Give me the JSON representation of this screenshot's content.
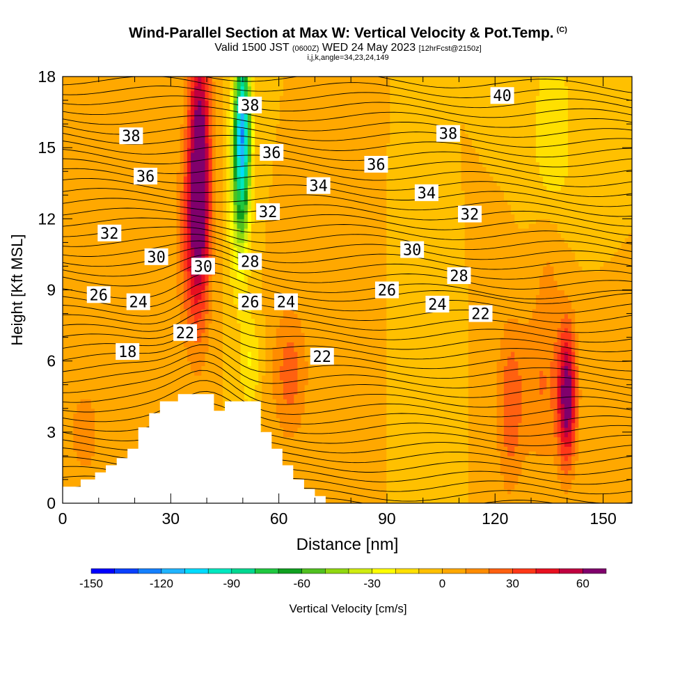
{
  "header": {
    "title": "Wind-Parallel Section at Max W: Vertical Velocity & Pot.Temp.",
    "copyright": "(C)",
    "valid_prefix": "Valid 1500 JST",
    "valid_utc": "(0600Z)",
    "valid_date": "WED 24 May 2023",
    "forecast_info": "[12hrFcst@2150z]",
    "indices": "i,j,k,angle=34,23,24,149"
  },
  "chart_data": {
    "type": "heatmap",
    "title": "Wind-Parallel Section at Max W: Vertical Velocity & Pot.Temp.",
    "xlabel": "Distance [nm]",
    "ylabel": "Height [Kft MSL]",
    "xlim": [
      0,
      158
    ],
    "ylim": [
      0,
      18
    ],
    "x_ticks": [
      0,
      30,
      60,
      90,
      120,
      150
    ],
    "y_ticks": [
      0,
      3,
      6,
      9,
      12,
      15,
      18
    ],
    "grid": false,
    "colorbar": {
      "label": "Vertical Velocity [cm/s]",
      "placement": "bottom",
      "ticks": [
        -150,
        -120,
        -90,
        -60,
        -30,
        0,
        30,
        60
      ],
      "levels": [
        -150,
        -140,
        -130,
        -120,
        -110,
        -100,
        -90,
        -80,
        -70,
        -60,
        -50,
        -40,
        -30,
        -20,
        -10,
        0,
        10,
        20,
        30,
        40,
        50,
        60,
        70
      ],
      "colors": [
        "#0000ff",
        "#0a40ff",
        "#1480ff",
        "#20b4ff",
        "#00dcff",
        "#00e8c0",
        "#00d890",
        "#20c840",
        "#10a020",
        "#50c020",
        "#90d810",
        "#d0ec10",
        "#ffff00",
        "#ffe000",
        "#ffc000",
        "#ffa800",
        "#ff8c00",
        "#ff6010",
        "#ff3818",
        "#e81020",
        "#c00040",
        "#80006c"
      ]
    },
    "terrain_kft": [
      [
        0,
        0.7
      ],
      [
        5,
        0.7
      ],
      [
        5,
        1.0
      ],
      [
        9,
        1.0
      ],
      [
        9,
        1.3
      ],
      [
        12,
        1.3
      ],
      [
        12,
        1.6
      ],
      [
        15,
        1.6
      ],
      [
        15,
        1.9
      ],
      [
        18,
        1.9
      ],
      [
        18,
        2.3
      ],
      [
        21,
        2.3
      ],
      [
        21,
        3.2
      ],
      [
        24,
        3.2
      ],
      [
        24,
        3.8
      ],
      [
        27,
        3.8
      ],
      [
        27,
        4.3
      ],
      [
        32,
        4.3
      ],
      [
        32,
        4.6
      ],
      [
        42,
        4.6
      ],
      [
        42,
        3.9
      ],
      [
        45,
        3.9
      ],
      [
        45,
        4.3
      ],
      [
        55,
        4.3
      ],
      [
        55,
        3.0
      ],
      [
        58,
        3.0
      ],
      [
        58,
        2.3
      ],
      [
        61,
        2.3
      ],
      [
        61,
        1.6
      ],
      [
        64,
        1.6
      ],
      [
        64,
        1.0
      ],
      [
        67,
        1.0
      ],
      [
        67,
        0.6
      ],
      [
        70,
        0.6
      ],
      [
        70,
        0.3
      ],
      [
        73,
        0.3
      ],
      [
        73,
        0
      ]
    ],
    "series": [
      {
        "name": "Vertical Velocity",
        "background_value": 0,
        "updraft_downdraft_cells": [
          {
            "x": 38,
            "y": 14.5,
            "sx": 2.2,
            "sy": 4.0,
            "value": 70
          },
          {
            "x": 36,
            "y": 11.0,
            "sx": 3.0,
            "sy": 3.0,
            "value": 30
          },
          {
            "x": 50,
            "y": 16.0,
            "sx": 1.5,
            "sy": 2.5,
            "value": -90
          },
          {
            "x": 49,
            "y": 13.5,
            "sx": 2.0,
            "sy": 3.0,
            "value": -45
          },
          {
            "x": 52,
            "y": 6.0,
            "sx": 2.0,
            "sy": 1.5,
            "value": -20
          },
          {
            "x": 140,
            "y": 4.5,
            "sx": 1.8,
            "sy": 2.0,
            "value": 65
          },
          {
            "x": 133,
            "y": 5.0,
            "sx": 5.0,
            "sy": 2.5,
            "value": 20
          },
          {
            "x": 124,
            "y": 4.0,
            "sx": 2.5,
            "sy": 2.5,
            "value": 25
          },
          {
            "x": 63,
            "y": 5.5,
            "sx": 3.5,
            "sy": 2.0,
            "value": 25
          },
          {
            "x": 6,
            "y": 3.0,
            "sx": 5.0,
            "sy": 2.5,
            "value": 12
          },
          {
            "x": 20,
            "y": 15.0,
            "sx": 4.0,
            "sy": 4.0,
            "value": 10
          },
          {
            "x": 135,
            "y": 10.5,
            "sx": 3.0,
            "sy": 2.0,
            "value": 12
          },
          {
            "x": 105,
            "y": 4.5,
            "sx": 2.0,
            "sy": 2.0,
            "value": -8
          },
          {
            "x": 136,
            "y": 15.5,
            "sx": 4.0,
            "sy": 3.0,
            "value": -20
          }
        ]
      },
      {
        "name": "Pot.Temp.",
        "contour_labels": [
          {
            "x": 18,
            "y": 6.4,
            "label": "18"
          },
          {
            "x": 34,
            "y": 7.2,
            "label": "22"
          },
          {
            "x": 72,
            "y": 6.2,
            "label": "22"
          },
          {
            "x": 116,
            "y": 8.0,
            "label": "22"
          },
          {
            "x": 21,
            "y": 8.5,
            "label": "24"
          },
          {
            "x": 62,
            "y": 8.5,
            "label": "24"
          },
          {
            "x": 104,
            "y": 8.4,
            "label": "24"
          },
          {
            "x": 10,
            "y": 8.8,
            "label": "26"
          },
          {
            "x": 52,
            "y": 8.5,
            "label": "26"
          },
          {
            "x": 90,
            "y": 9.0,
            "label": "26"
          },
          {
            "x": 52,
            "y": 10.2,
            "label": "28"
          },
          {
            "x": 110,
            "y": 9.6,
            "label": "28"
          },
          {
            "x": 26,
            "y": 10.4,
            "label": "30"
          },
          {
            "x": 39,
            "y": 10.0,
            "label": "30"
          },
          {
            "x": 97,
            "y": 10.7,
            "label": "30"
          },
          {
            "x": 13,
            "y": 11.4,
            "label": "32"
          },
          {
            "x": 57,
            "y": 12.3,
            "label": "32"
          },
          {
            "x": 113,
            "y": 12.2,
            "label": "32"
          },
          {
            "x": 71,
            "y": 13.4,
            "label": "34"
          },
          {
            "x": 101,
            "y": 13.1,
            "label": "34"
          },
          {
            "x": 23,
            "y": 13.8,
            "label": "36"
          },
          {
            "x": 58,
            "y": 14.8,
            "label": "36"
          },
          {
            "x": 87,
            "y": 14.3,
            "label": "36"
          },
          {
            "x": 19,
            "y": 15.5,
            "label": "38"
          },
          {
            "x": 52,
            "y": 16.8,
            "label": "38"
          },
          {
            "x": 107,
            "y": 15.6,
            "label": "38"
          },
          {
            "x": 122,
            "y": 17.2,
            "label": "40"
          }
        ]
      }
    ]
  }
}
